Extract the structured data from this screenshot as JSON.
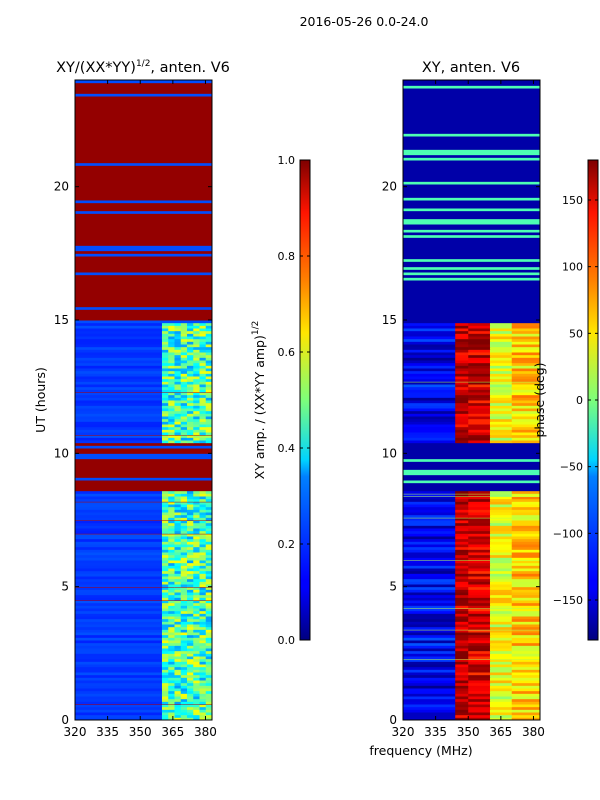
{
  "figure": {
    "suptitle": "2016-05-26 0.0-24.0",
    "shared_xlabel": "frequency (MHz)"
  },
  "chart_data": [
    {
      "type": "heatmap",
      "title_main": "XY/(XX*YY)",
      "title_sup": "1/2",
      "title_tail": ", anten. V6",
      "xlabel": "",
      "ylabel": "UT (hours)",
      "xlim": [
        320,
        383
      ],
      "ylim": [
        0,
        24
      ],
      "xticks": [
        320,
        335,
        350,
        365,
        380
      ],
      "yticks": [
        0,
        5,
        10,
        15,
        20
      ],
      "colorbar": {
        "label_main": "XY amp. / (XX*YY amp)",
        "label_sup": "1/2",
        "range": [
          0.0,
          1.0
        ],
        "ticks": [
          "0.0",
          "0.2",
          "0.4",
          "0.6",
          "0.8",
          "1.0"
        ],
        "tick_values": [
          0.0,
          0.2,
          0.4,
          0.6,
          0.8,
          1.0
        ]
      },
      "saturated_ut_bands_hours": [
        [
          8.6,
          10.4
        ],
        [
          14.9,
          24.0
        ]
      ],
      "background_level": 0.18,
      "high_freq_block_mhz": [
        360,
        383
      ],
      "high_freq_level": 0.45
    },
    {
      "type": "heatmap",
      "title_main": "XY, anten. V6",
      "title_sup": "",
      "title_tail": "",
      "xlabel": "frequency (MHz)",
      "ylabel": "",
      "xlim": [
        320,
        383
      ],
      "ylim": [
        0,
        24
      ],
      "xticks": [
        320,
        335,
        350,
        365,
        380
      ],
      "yticks": [
        0,
        5,
        10,
        15,
        20
      ],
      "colorbar": {
        "label_main": "phase (deg)",
        "label_sup": "",
        "range": [
          -180,
          180
        ],
        "ticks": [
          "−150",
          "−100",
          "−50",
          "0",
          "50",
          "100",
          "150"
        ],
        "tick_values": [
          -150,
          -100,
          -50,
          0,
          50,
          100,
          150
        ]
      },
      "phase_bands_mhz": [
        {
          "range": [
            320,
            344
          ],
          "phase_deg": -140
        },
        {
          "range": [
            344,
            350
          ],
          "phase_deg": 160
        },
        {
          "range": [
            350,
            360
          ],
          "phase_deg": 150
        },
        {
          "range": [
            360,
            370
          ],
          "phase_deg": 40
        },
        {
          "range": [
            370,
            383
          ],
          "phase_deg": 60
        }
      ],
      "low_phase_ut_bands_hours": [
        [
          8.6,
          10.4
        ],
        [
          14.9,
          24.0
        ]
      ]
    }
  ]
}
